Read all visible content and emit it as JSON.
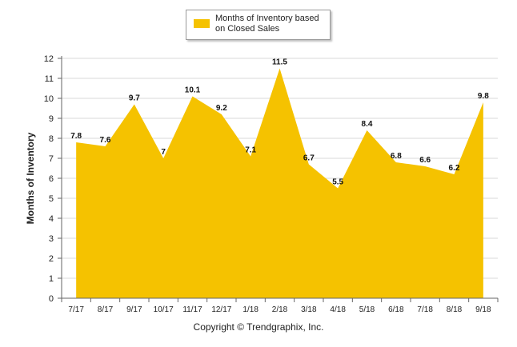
{
  "chart_data": {
    "type": "area",
    "categories": [
      "7/17",
      "8/17",
      "9/17",
      "10/17",
      "11/17",
      "12/17",
      "1/18",
      "2/18",
      "3/18",
      "4/18",
      "5/18",
      "6/18",
      "7/18",
      "8/18",
      "9/18"
    ],
    "series": [
      {
        "name": "Months of Inventory based on Closed Sales",
        "values": [
          7.8,
          7.6,
          9.7,
          7,
          10.1,
          9.2,
          7.1,
          11.5,
          6.7,
          5.5,
          8.4,
          6.8,
          6.6,
          6.2,
          9.8
        ],
        "labels": [
          "7.8",
          "7.6",
          "9.7",
          "7",
          "10.1",
          "9.2",
          "7.1",
          "11.5",
          "6.7",
          "5.5",
          "8.4",
          "6.8",
          "6.6",
          "6.2",
          "9.8"
        ]
      }
    ],
    "ylabel": "Months of Inventory",
    "ylim": [
      0,
      12
    ],
    "yticks": [
      0,
      1,
      2,
      3,
      4,
      5,
      6,
      7,
      8,
      9,
      10,
      11,
      12
    ],
    "grid": true,
    "legend_position": "top-center",
    "fill_color": "#F5C200",
    "grid_color": "#d9d9d9"
  },
  "footer": "Copyright © Trendgraphix, Inc."
}
